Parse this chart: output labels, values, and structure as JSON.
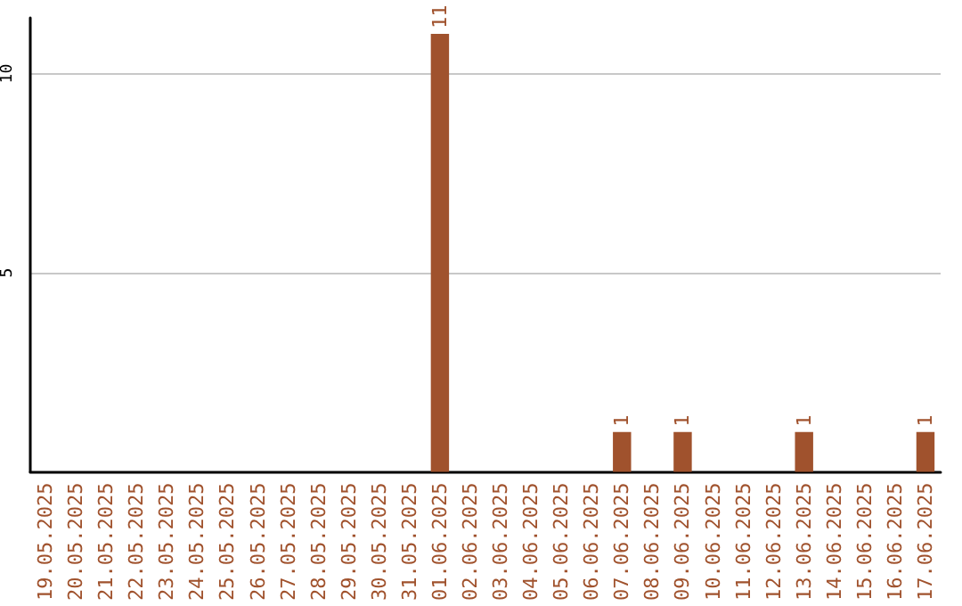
{
  "chart_data": {
    "type": "bar",
    "categories": [
      "19.05.2025",
      "20.05.2025",
      "21.05.2025",
      "22.05.2025",
      "23.05.2025",
      "24.05.2025",
      "25.05.2025",
      "26.05.2025",
      "27.05.2025",
      "28.05.2025",
      "29.05.2025",
      "30.05.2025",
      "31.05.2025",
      "01.06.2025",
      "02.06.2025",
      "03.06.2025",
      "04.06.2025",
      "05.06.2025",
      "06.06.2025",
      "07.06.2025",
      "08.06.2025",
      "09.06.2025",
      "10.06.2025",
      "11.06.2025",
      "12.06.2025",
      "13.06.2025",
      "14.06.2025",
      "15.06.2025",
      "16.06.2025",
      "17.06.2025"
    ],
    "values": [
      0,
      0,
      0,
      0,
      0,
      0,
      0,
      0,
      0,
      0,
      0,
      0,
      0,
      11,
      0,
      0,
      0,
      0,
      0,
      1,
      0,
      1,
      0,
      0,
      0,
      1,
      0,
      0,
      0,
      1
    ],
    "value_labels": [
      null,
      null,
      null,
      null,
      null,
      null,
      null,
      null,
      null,
      null,
      null,
      null,
      null,
      "11",
      null,
      null,
      null,
      null,
      null,
      "1",
      null,
      "1",
      null,
      null,
      null,
      "1",
      null,
      null,
      null,
      "1"
    ],
    "color": "#a0522d",
    "ylim": [
      0,
      11.4
    ],
    "yticks": [
      5,
      10
    ],
    "grid": "y"
  }
}
